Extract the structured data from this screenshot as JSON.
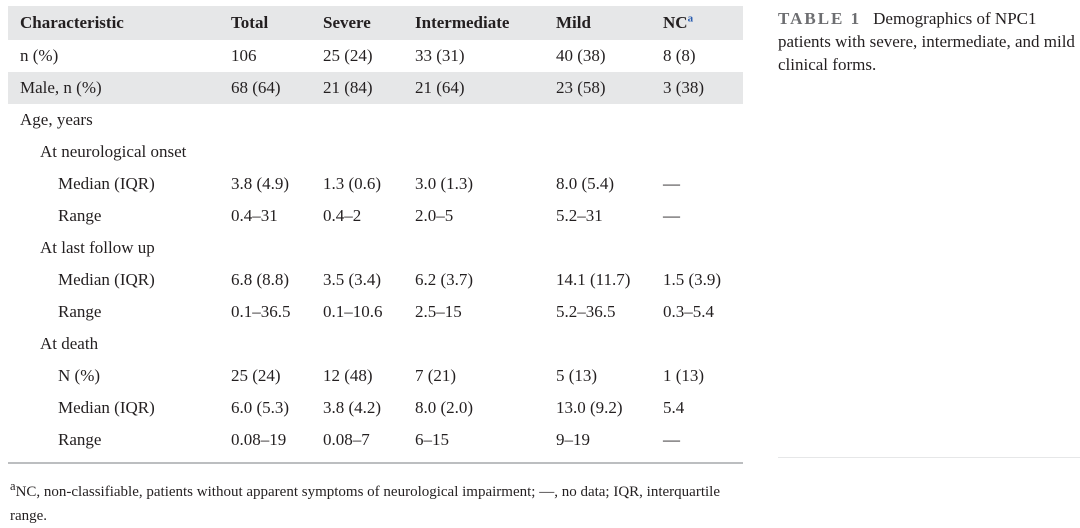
{
  "table": {
    "headers": [
      "Characteristic",
      "Total",
      "Severe",
      "Intermediate",
      "Mild",
      "NC"
    ],
    "nc_footnote_mark": "a",
    "rows": [
      {
        "cells": [
          "n (%)",
          "106",
          "25 (24)",
          "33 (31)",
          "40 (38)",
          "8 (8)"
        ]
      },
      {
        "cells": [
          "Male, n (%)",
          "68 (64)",
          "21 (84)",
          "21 (64)",
          "23 (58)",
          "3 (38)"
        ]
      },
      {
        "cells": [
          "Age, years",
          "",
          "",
          "",
          "",
          ""
        ]
      },
      {
        "cells": [
          "At neurological onset",
          "",
          "",
          "",
          "",
          ""
        ]
      },
      {
        "cells": [
          "Median (IQR)",
          "3.8 (4.9)",
          "1.3 (0.6)",
          "3.0 (1.3)",
          "8.0 (5.4)",
          "—"
        ]
      },
      {
        "cells": [
          "Range",
          "0.4–31",
          "0.4–2",
          "2.0–5",
          "5.2–31",
          "—"
        ]
      },
      {
        "cells": [
          "At last follow up",
          "",
          "",
          "",
          "",
          ""
        ]
      },
      {
        "cells": [
          "Median (IQR)",
          "6.8 (8.8)",
          "3.5 (3.4)",
          "6.2 (3.7)",
          "14.1 (11.7)",
          "1.5 (3.9)"
        ]
      },
      {
        "cells": [
          "Range",
          "0.1–36.5",
          "0.1–10.6",
          "2.5–15",
          "5.2–36.5",
          "0.3–5.4"
        ]
      },
      {
        "cells": [
          "At death",
          "",
          "",
          "",
          "",
          ""
        ]
      },
      {
        "cells": [
          "N (%)",
          "25 (24)",
          "12 (48)",
          "7 (21)",
          "5 (13)",
          "1 (13)"
        ]
      },
      {
        "cells": [
          "Median (IQR)",
          "6.0 (5.3)",
          "3.8 (4.2)",
          "8.0 (2.0)",
          "13.0 (9.2)",
          "5.4"
        ]
      },
      {
        "cells": [
          "Range",
          "0.08–19",
          "0.08–7",
          "6–15",
          "9–19",
          "—"
        ]
      }
    ]
  },
  "footnote": {
    "mark": "a",
    "text": "NC, non-classifiable, patients without apparent symptoms of neurological impairment; —, no data; IQR, interquartile range."
  },
  "caption": {
    "label": "TABLE 1",
    "text": "Demographics of NPC1 patients with severe, intermediate, and mild clinical forms."
  }
}
